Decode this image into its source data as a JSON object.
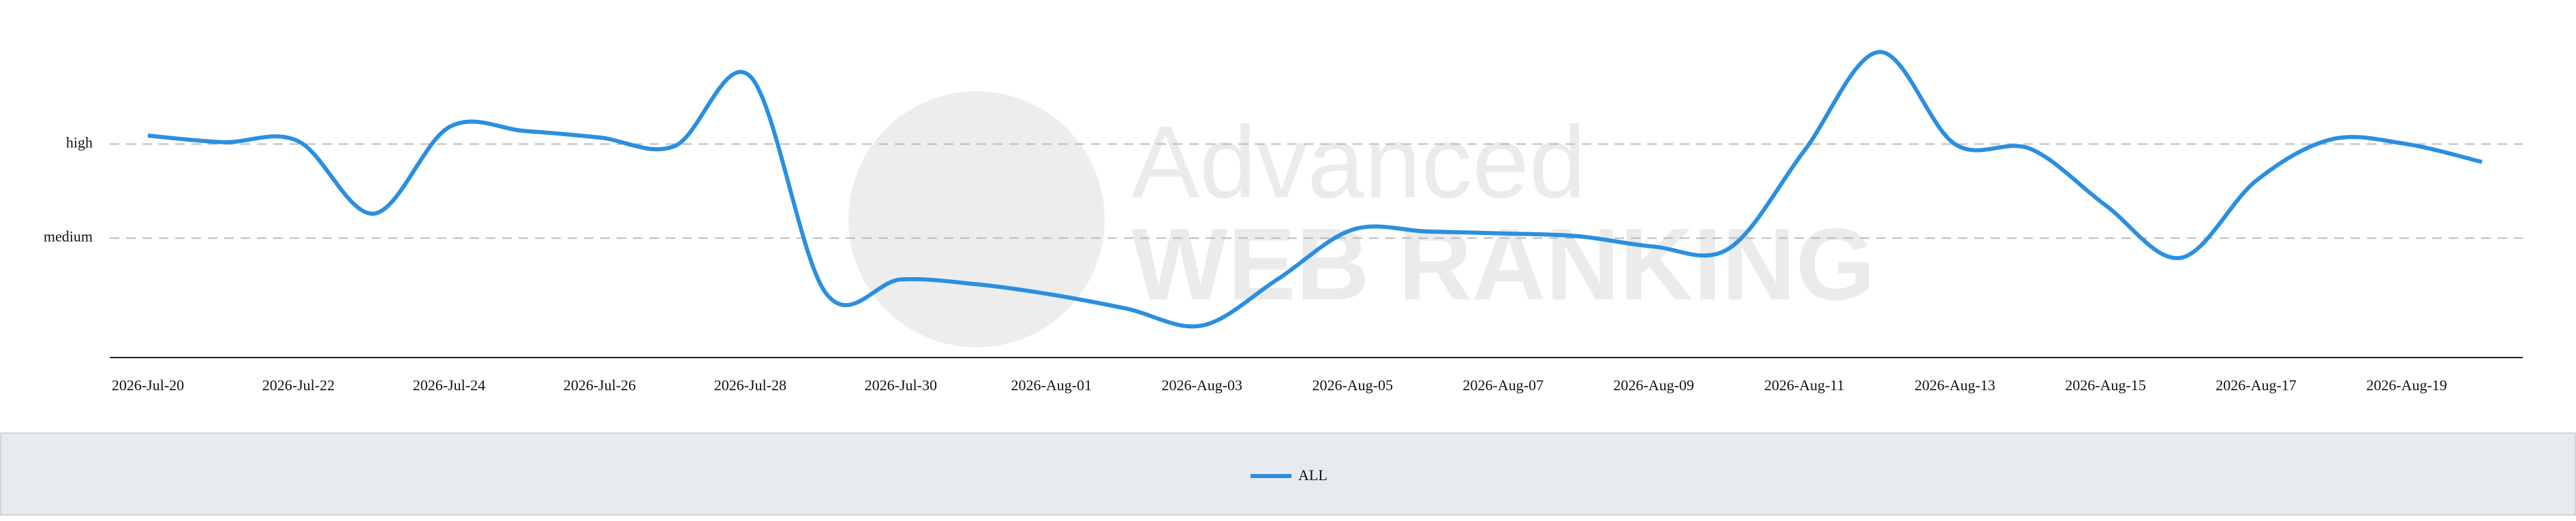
{
  "chart_data": {
    "type": "line",
    "watermark": [
      "Advanced",
      "WEB RANKING"
    ],
    "categories": [
      "2026-Jul-20",
      null,
      "2026-Jul-22",
      null,
      "2026-Jul-24",
      null,
      "2026-Jul-26",
      null,
      "2026-Jul-28",
      null,
      "2026-Jul-30",
      null,
      "2026-Aug-01",
      null,
      "2026-Aug-03",
      null,
      "2026-Aug-05",
      null,
      "2026-Aug-07",
      null,
      "2026-Aug-09",
      null,
      "2026-Aug-11",
      null,
      "2026-Aug-13",
      null,
      "2026-Aug-15",
      null,
      "2026-Aug-17",
      null,
      "2026-Aug-19",
      null
    ],
    "series": [
      {
        "name": "ALL",
        "color": "#2b8fe0",
        "values": [
          2.09,
          2.02,
          2.03,
          1.26,
          2.18,
          2.14,
          2.07,
          1.98,
          2.72,
          0.42,
          0.56,
          0.51,
          0.4,
          0.25,
          0.07,
          0.56,
          1.09,
          1.07,
          1.05,
          1.02,
          0.91,
          0.89,
          1.93,
          2.98,
          2.0,
          1.95,
          1.35,
          0.79,
          1.61,
          2.05,
          2.0,
          1.81
        ]
      }
    ],
    "ylim": [
      -0.27,
      3.17
    ],
    "yticks": [
      {
        "value": 1,
        "label": "medium"
      },
      {
        "value": 2,
        "label": "high"
      }
    ],
    "grid": true,
    "legend": "bottom"
  }
}
